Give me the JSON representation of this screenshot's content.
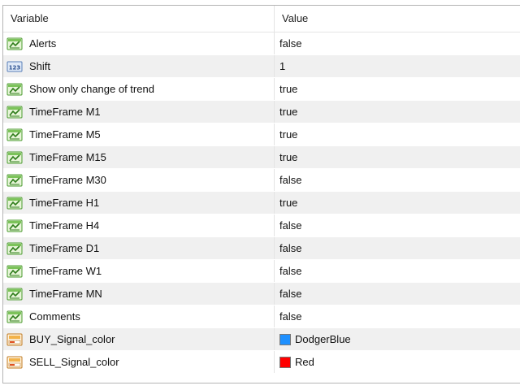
{
  "headers": {
    "variable": "Variable",
    "value": "Value"
  },
  "rows": [
    {
      "name": "Alerts",
      "value": "false",
      "icon": "bool-icon"
    },
    {
      "name": "Shift",
      "value": "1",
      "icon": "int-icon"
    },
    {
      "name": "Show only change of trend",
      "value": "true",
      "icon": "bool-icon"
    },
    {
      "name": "TimeFrame M1",
      "value": "true",
      "icon": "bool-icon"
    },
    {
      "name": "TimeFrame M5",
      "value": "true",
      "icon": "bool-icon"
    },
    {
      "name": "TimeFrame M15",
      "value": "true",
      "icon": "bool-icon"
    },
    {
      "name": "TimeFrame M30",
      "value": "false",
      "icon": "bool-icon"
    },
    {
      "name": "TimeFrame H1",
      "value": "true",
      "icon": "bool-icon"
    },
    {
      "name": "TimeFrame H4",
      "value": "false",
      "icon": "bool-icon"
    },
    {
      "name": "TimeFrame D1",
      "value": "false",
      "icon": "bool-icon"
    },
    {
      "name": "TimeFrame W1",
      "value": "false",
      "icon": "bool-icon"
    },
    {
      "name": "TimeFrame MN",
      "value": "false",
      "icon": "bool-icon"
    },
    {
      "name": "Comments",
      "value": "false",
      "icon": "bool-icon"
    },
    {
      "name": "BUY_Signal_color",
      "value": "DodgerBlue",
      "icon": "color-icon",
      "swatch": "#1e90ff"
    },
    {
      "name": "SELL_Signal_color",
      "value": "Red",
      "icon": "color-icon",
      "swatch": "#ff0000"
    }
  ]
}
